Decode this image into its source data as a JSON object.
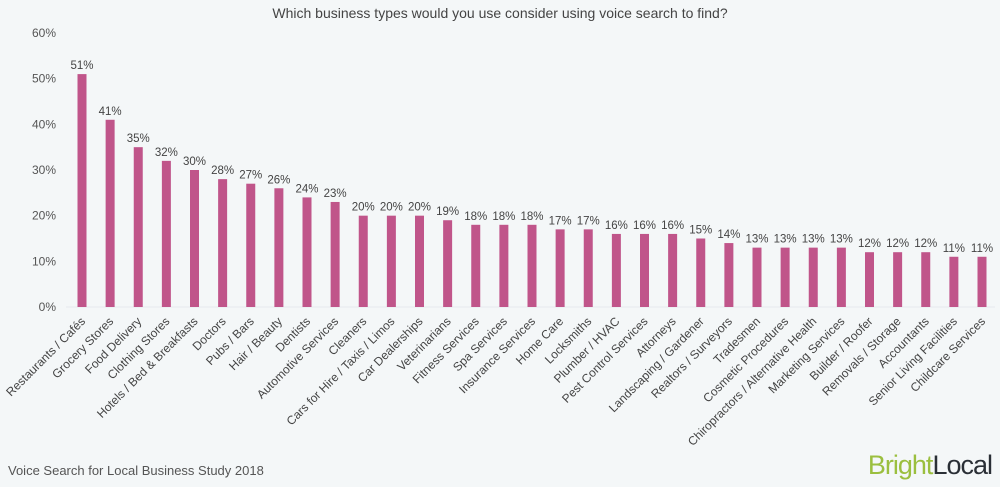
{
  "chart_data": {
    "type": "bar",
    "title": "Which business types would you use consider using voice search to find?",
    "xlabel": "",
    "ylabel": "",
    "ylim": [
      0,
      60
    ],
    "yticks": [
      "0%",
      "10%",
      "20%",
      "30%",
      "40%",
      "50%",
      "60%"
    ],
    "grid": false,
    "bar_color": "#c0558a",
    "categories": [
      "Restaurants / Cafés",
      "Grocery Stores",
      "Food Delivery",
      "Clothing Stores",
      "Hotels / Bed & Breakfasts",
      "Doctors",
      "Pubs / Bars",
      "Hair / Beauty",
      "Dentists",
      "Automotive Services",
      "Cleaners",
      "Cars for Hire / Taxis / Limos",
      "Car Dealerships",
      "Veterinarians",
      "Fitness Services",
      "Spa Services",
      "Insurance Services",
      "Home Care",
      "Locksmiths",
      "Plumber / HVAC",
      "Pest Control Services",
      "Attorneys",
      "Landscaping / Gardener",
      "Realtors / Surveyors",
      "Tradesmen",
      "Cosmetic Procedures",
      "Chiropractors / Alternative Health",
      "Marketing Services",
      "Builder / Roofer",
      "Removals / Storage",
      "Accountants",
      "Senior Living Facilities",
      "Childcare Services"
    ],
    "values": [
      51,
      41,
      35,
      32,
      30,
      28,
      27,
      26,
      24,
      23,
      20,
      20,
      20,
      19,
      18,
      18,
      18,
      17,
      17,
      16,
      16,
      16,
      15,
      14,
      13,
      13,
      13,
      13,
      12,
      12,
      12,
      11,
      11
    ],
    "data_labels": [
      "51%",
      "41%",
      "35%",
      "32%",
      "30%",
      "28%",
      "27%",
      "26%",
      "24%",
      "23%",
      "20%",
      "20%",
      "20%",
      "19%",
      "18%",
      "18%",
      "18%",
      "17%",
      "17%",
      "16%",
      "16%",
      "16%",
      "15%",
      "14%",
      "13%",
      "13%",
      "13%",
      "13%",
      "12%",
      "12%",
      "12%",
      "11%",
      "11%"
    ]
  },
  "footer": {
    "source": "Voice Search for Local Business Study 2018"
  },
  "logo": {
    "part1": "Bright",
    "part2": "Local",
    "colors": {
      "part1": "#9bbf3f",
      "part2": "#2a2f36"
    }
  }
}
